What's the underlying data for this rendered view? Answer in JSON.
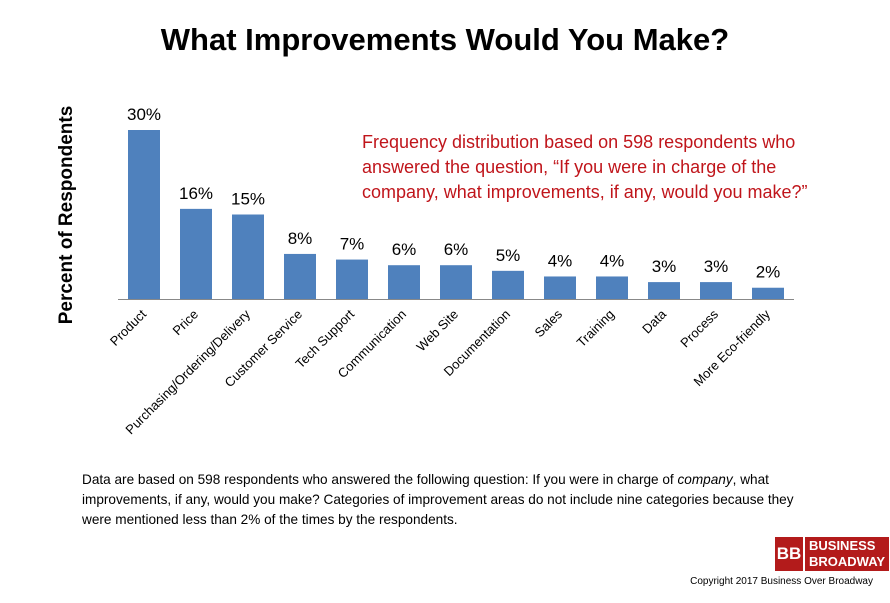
{
  "chart_data": {
    "type": "bar",
    "title": "What Improvements Would You Make?",
    "ylabel": "Percent of Respondents",
    "xlabel": "",
    "ylim": [
      0,
      30
    ],
    "grid": false,
    "categories": [
      "Product",
      "Price",
      "Purchasing/Ordering/Delivery",
      "Customer Service",
      "Tech Support",
      "Communication",
      "Web Site",
      "Documentation",
      "Sales",
      "Training",
      "Data",
      "Process",
      "More Eco-friendly"
    ],
    "values": [
      30,
      16,
      15,
      8,
      7,
      6,
      6,
      5,
      4,
      4,
      3,
      3,
      2
    ],
    "data_labels": [
      "30%",
      "16%",
      "15%",
      "8%",
      "7%",
      "6%",
      "6%",
      "5%",
      "4%",
      "4%",
      "3%",
      "3%",
      "2%"
    ],
    "bar_color": "#4f81bd",
    "annotation": "Frequency distribution based on 598 respondents who answered the question, “If you were in charge of the company, what improvements, if any, would you make?”",
    "annotation_color": "#c0151b"
  },
  "footnote": {
    "before": "Data are based on 598 respondents who answered the following question: If you were in charge of ",
    "italic": "company",
    "after": ", what improvements, if any, would you make? Categories of improvement areas do not include nine categories because they were mentioned less than 2% of the times by the respondents."
  },
  "logo": {
    "mark": "BB",
    "line1": "BUSINESS",
    "line2": "BROADWAY"
  },
  "copyright": "Copyright 2017 Business Over Broadway"
}
